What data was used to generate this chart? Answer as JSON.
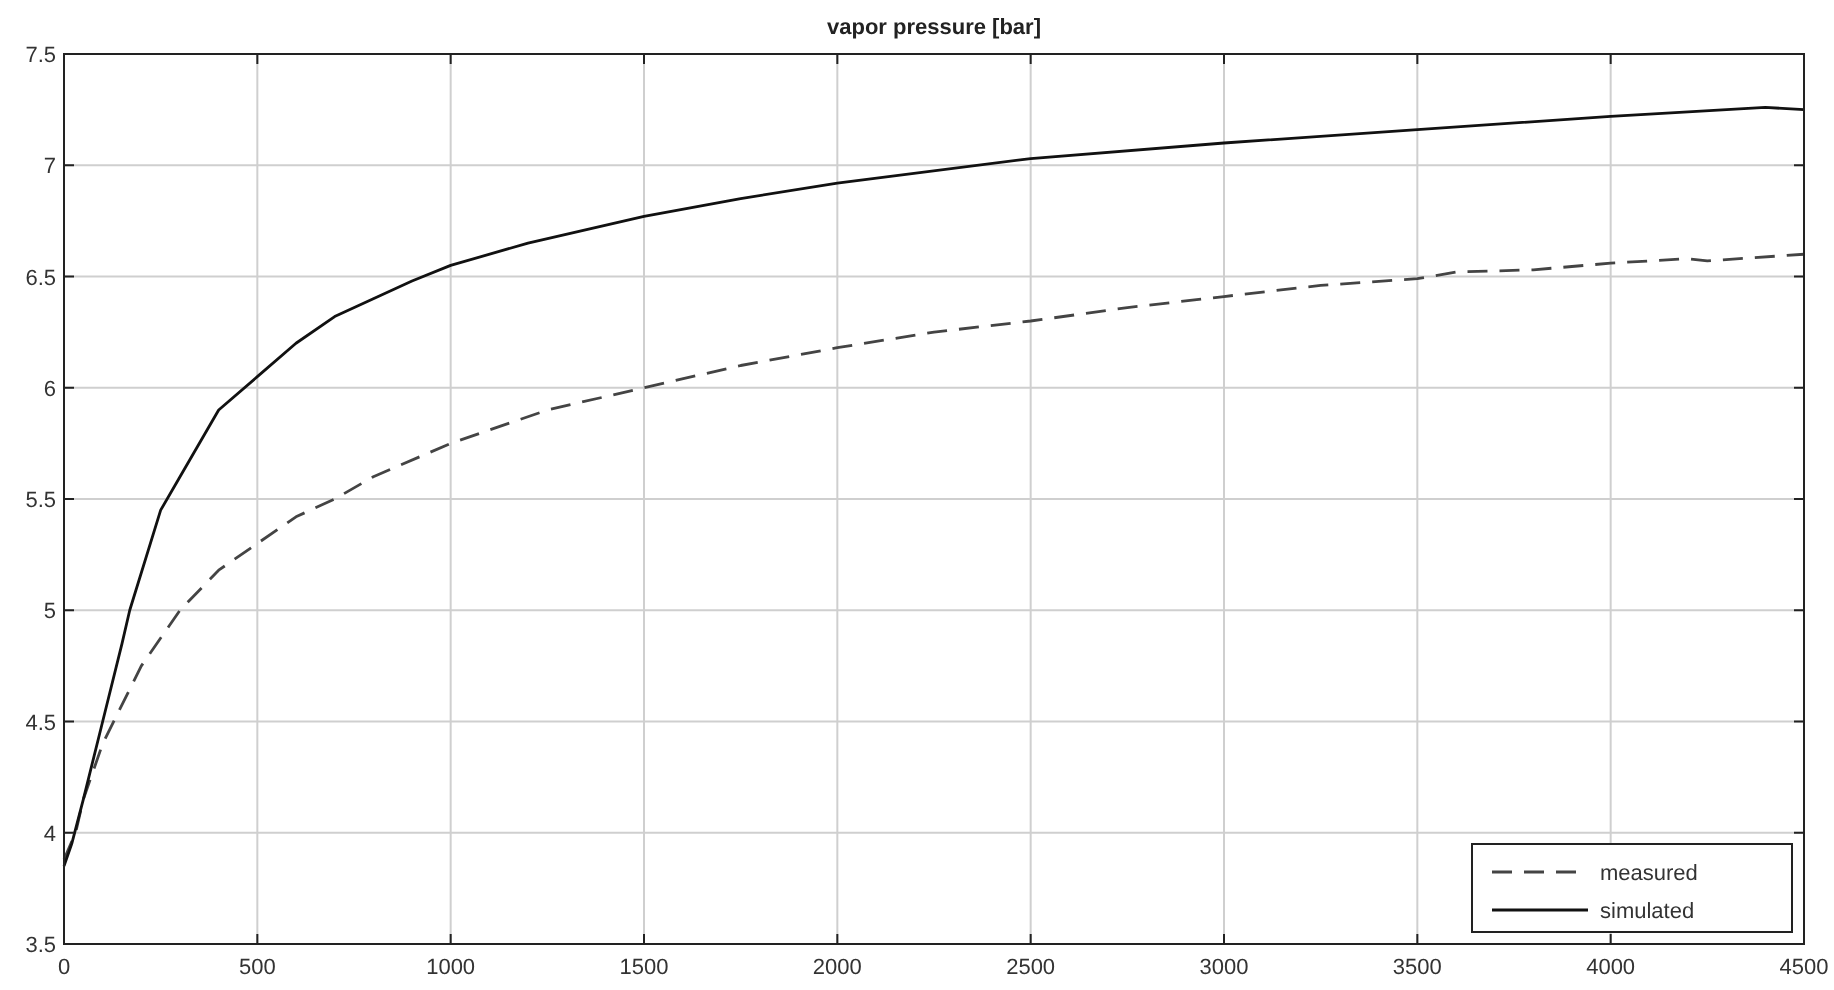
{
  "chart_data": {
    "type": "line",
    "title": "vapor pressure [bar]",
    "xlim": [
      0,
      4500
    ],
    "xticks": [
      0,
      500,
      1000,
      1500,
      2000,
      2500,
      3000,
      3500,
      4000,
      4500
    ],
    "ylim": [
      3.5,
      7.5
    ],
    "yticks": [
      3.5,
      4,
      4.5,
      5,
      5.5,
      6,
      6.5,
      7,
      7.5
    ],
    "grid": true,
    "legend": "bottom right",
    "series": [
      {
        "name": "measured",
        "color": "#444444",
        "line_style": "dashed",
        "x": [
          0,
          30,
          50,
          100,
          200,
          300,
          400,
          500,
          600,
          700,
          800,
          1000,
          1250,
          1500,
          1750,
          2000,
          2250,
          2500,
          2750,
          3000,
          3250,
          3500,
          3600,
          3800,
          4000,
          4200,
          4250,
          4500
        ],
        "values": [
          3.88,
          4.0,
          4.15,
          4.4,
          4.75,
          5.0,
          5.18,
          5.3,
          5.42,
          5.5,
          5.6,
          5.75,
          5.9,
          6.0,
          6.1,
          6.18,
          6.25,
          6.3,
          6.36,
          6.41,
          6.46,
          6.49,
          6.52,
          6.53,
          6.56,
          6.58,
          6.57,
          6.6
        ]
      },
      {
        "name": "simulated",
        "color": "#111111",
        "line_style": "solid",
        "x": [
          0,
          20,
          50,
          100,
          150,
          170,
          250,
          300,
          400,
          500,
          600,
          700,
          800,
          900,
          1000,
          1200,
          1500,
          1750,
          2000,
          2500,
          3000,
          3500,
          4000,
          4400,
          4500
        ],
        "values": [
          3.85,
          3.95,
          4.15,
          4.5,
          4.85,
          5.0,
          5.45,
          5.6,
          5.9,
          6.05,
          6.2,
          6.32,
          6.4,
          6.48,
          6.55,
          6.65,
          6.77,
          6.85,
          6.92,
          7.03,
          7.1,
          7.16,
          7.22,
          7.26,
          7.25
        ]
      }
    ]
  }
}
